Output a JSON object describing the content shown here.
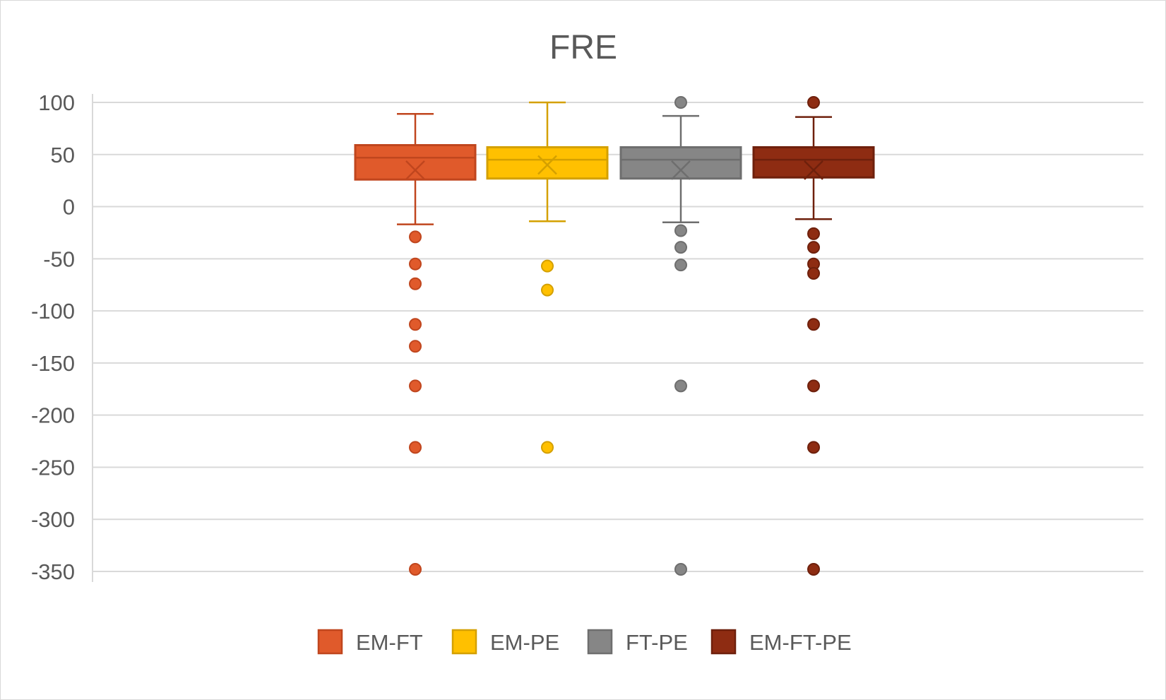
{
  "chart_data": {
    "type": "boxplot",
    "title": "FRE",
    "xlabel": "",
    "ylabel": "",
    "ylim": [
      -350,
      100
    ],
    "y_ticks": [
      100,
      50,
      0,
      -50,
      -100,
      -150,
      -200,
      -250,
      -300,
      -350
    ],
    "y_tick_labels": [
      "100",
      "50",
      "0",
      "-50",
      "-100",
      "-150",
      "-200",
      "-250",
      "-300",
      "-350"
    ],
    "grid": true,
    "legend_position": "bottom",
    "series": [
      {
        "name": "EM-FT",
        "color": "#E05A2B",
        "stroke": "#C0461E",
        "whisker_low": -17,
        "q1": 26,
        "median": 47,
        "q3": 59,
        "whisker_high": 89,
        "mean": 35,
        "outliers": [
          -29,
          -55,
          -74,
          -113,
          -134,
          -172,
          -231,
          -348
        ]
      },
      {
        "name": "EM-PE",
        "color": "#FFC000",
        "stroke": "#D4A000",
        "whisker_low": -14,
        "q1": 27,
        "median": 45,
        "q3": 57,
        "whisker_high": 100,
        "mean": 40,
        "outliers": [
          -57,
          -80,
          -231
        ]
      },
      {
        "name": "FT-PE",
        "color": "#868686",
        "stroke": "#6E6E6E",
        "whisker_low": -15,
        "q1": 27,
        "median": 45,
        "q3": 57,
        "whisker_high": 87,
        "mean": 35,
        "outliers": [
          100,
          -23,
          -39,
          -56,
          -172,
          -348
        ]
      },
      {
        "name": "EM-FT-PE",
        "color": "#8E2C12",
        "stroke": "#6E200C",
        "whisker_low": -12,
        "q1": 28,
        "median": 45,
        "q3": 57,
        "whisker_high": 86,
        "mean": 35,
        "outliers": [
          100,
          -26,
          -39,
          -55,
          -64,
          -113,
          -172,
          -231,
          -348
        ]
      }
    ]
  }
}
